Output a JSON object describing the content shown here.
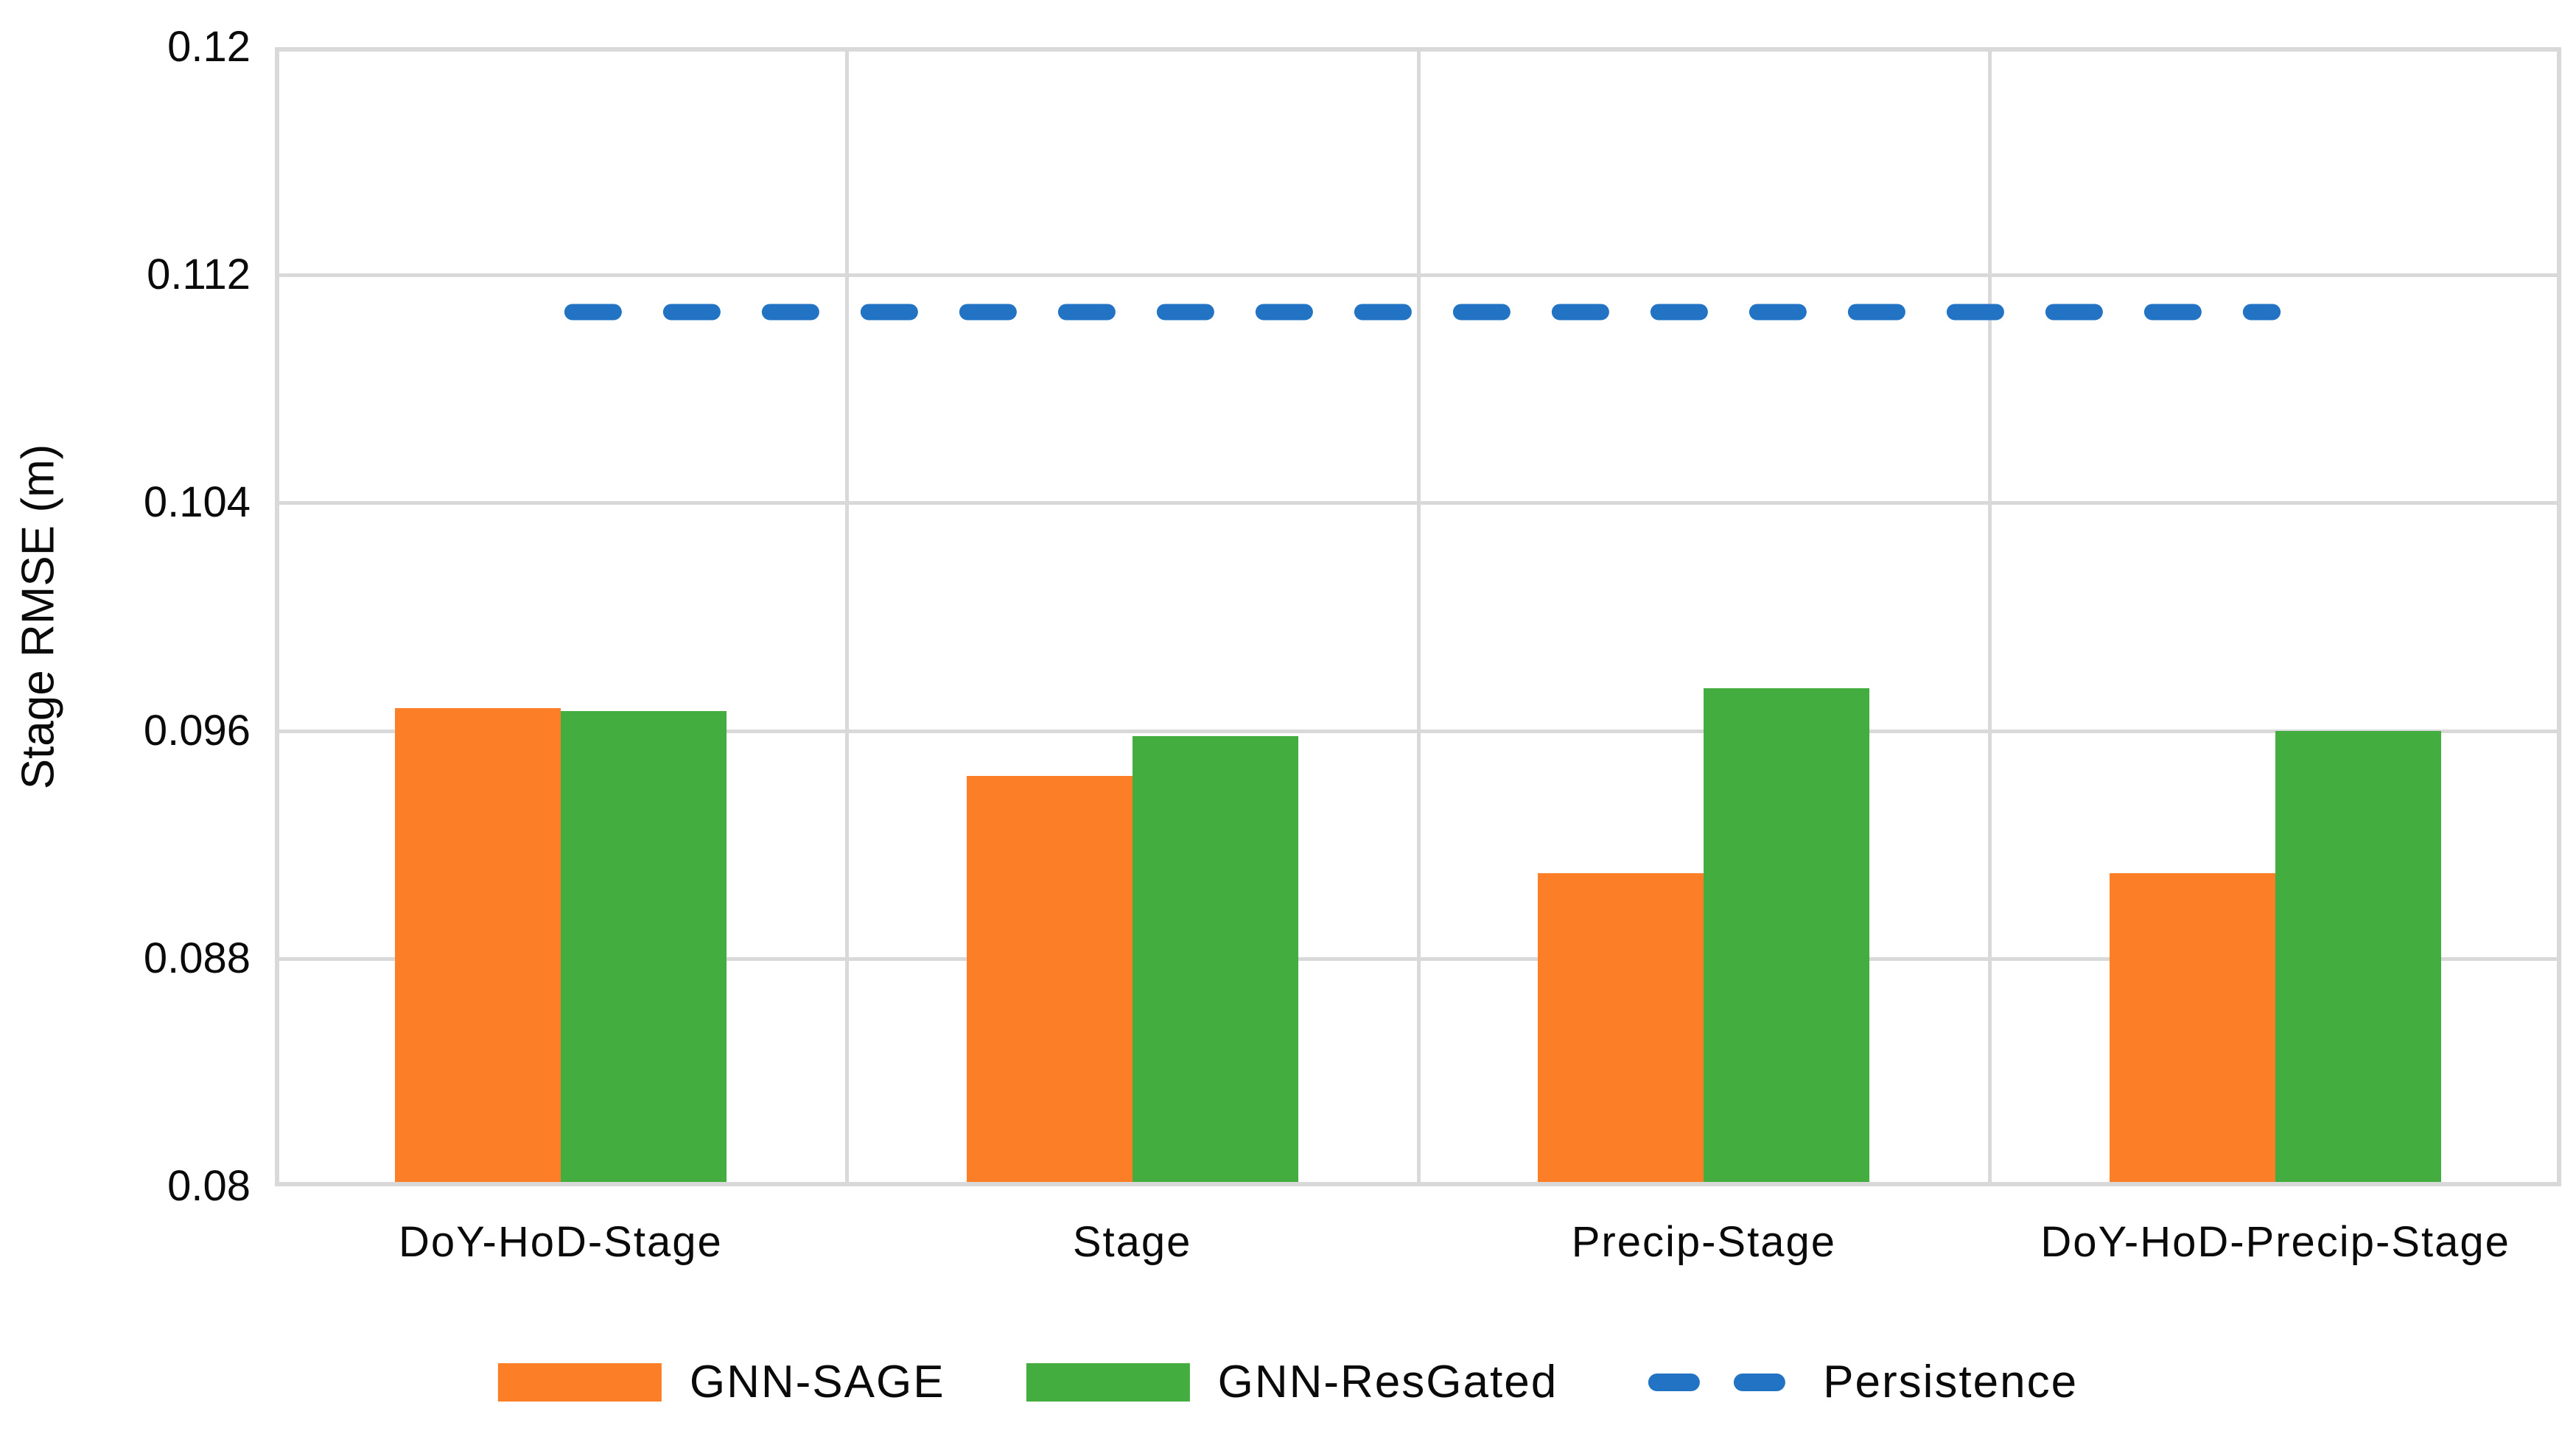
{
  "chart_data": {
    "type": "bar",
    "title": "",
    "xlabel": "",
    "ylabel": "Stage RMSE (m)",
    "ylim": [
      0.08,
      0.12
    ],
    "ytick_values": [
      0.08,
      0.088,
      0.096,
      0.104,
      0.112,
      0.12
    ],
    "ytick_labels": [
      "0.08",
      "0.088",
      "0.096",
      "0.104",
      "0.112",
      "0.12"
    ],
    "categories": [
      "DoY-HoD-Stage",
      "Stage",
      "Precip-Stage",
      "DoY-HoD-Precip-Stage"
    ],
    "series": [
      {
        "name": "GNN-SAGE",
        "color": "#fc7e26",
        "values": [
          0.0968,
          0.0944,
          0.091,
          0.091
        ]
      },
      {
        "name": "GNN-ResGated",
        "color": "#43ad40",
        "values": [
          0.0967,
          0.0958,
          0.0975,
          0.096
        ]
      }
    ],
    "reference_line": {
      "name": "Persistence",
      "value": 0.1107,
      "color": "#2273c3",
      "style": "dashed"
    },
    "grid": true,
    "grid_color": "#d9d9d9",
    "legend_position": "bottom"
  }
}
